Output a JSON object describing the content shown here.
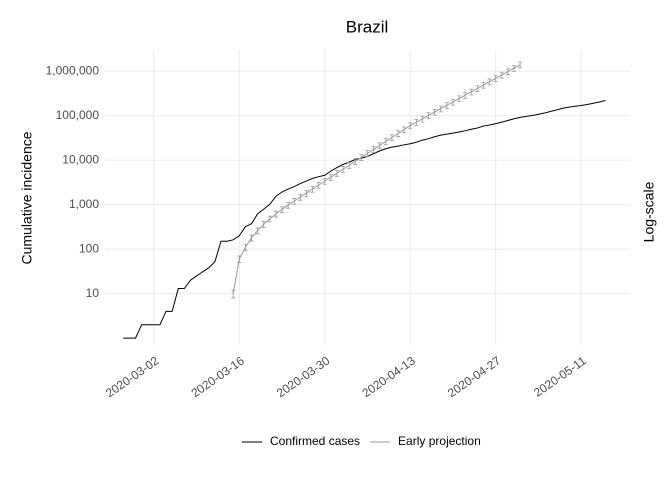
{
  "chart_data": {
    "type": "line",
    "title": "Brazil",
    "y_label": "Cumulative incidence",
    "right_label": "Log-scale",
    "log_y": true,
    "grid": true,
    "legend_position": "bottom",
    "xlim": [
      "2020-02-23",
      "2020-05-19"
    ],
    "xticks": [
      "2020-03-02",
      "2020-03-16",
      "2020-03-30",
      "2020-04-13",
      "2020-04-27",
      "2020-05-11"
    ],
    "ylim": [
      0.7,
      3000000
    ],
    "yticks": [
      10,
      100,
      {
        "value": 1000,
        "label": "1,000"
      },
      {
        "value": 10000,
        "label": "10,000"
      },
      {
        "value": 100000,
        "label": "100,000"
      },
      {
        "value": 1000000,
        "label": "1,000,000"
      }
    ],
    "series": [
      {
        "name": "Confirmed cases",
        "color": "#000000",
        "x": [
          "2020-02-26",
          "2020-02-27",
          "2020-02-28",
          "2020-02-29",
          "2020-03-01",
          "2020-03-02",
          "2020-03-03",
          "2020-03-04",
          "2020-03-05",
          "2020-03-06",
          "2020-03-07",
          "2020-03-08",
          "2020-03-09",
          "2020-03-10",
          "2020-03-11",
          "2020-03-12",
          "2020-03-13",
          "2020-03-14",
          "2020-03-15",
          "2020-03-16",
          "2020-03-17",
          "2020-03-18",
          "2020-03-19",
          "2020-03-20",
          "2020-03-21",
          "2020-03-22",
          "2020-03-23",
          "2020-03-24",
          "2020-03-25",
          "2020-03-26",
          "2020-03-27",
          "2020-03-28",
          "2020-03-29",
          "2020-03-30",
          "2020-03-31",
          "2020-04-01",
          "2020-04-02",
          "2020-04-03",
          "2020-04-04",
          "2020-04-05",
          "2020-04-06",
          "2020-04-07",
          "2020-04-08",
          "2020-04-09",
          "2020-04-10",
          "2020-04-11",
          "2020-04-12",
          "2020-04-13",
          "2020-04-14",
          "2020-04-15",
          "2020-04-16",
          "2020-04-17",
          "2020-04-18",
          "2020-04-19",
          "2020-04-20",
          "2020-04-21",
          "2020-04-22",
          "2020-04-23",
          "2020-04-24",
          "2020-04-25",
          "2020-04-26",
          "2020-04-27",
          "2020-04-28",
          "2020-04-29",
          "2020-04-30",
          "2020-05-01",
          "2020-05-02",
          "2020-05-03",
          "2020-05-04",
          "2020-05-05",
          "2020-05-06",
          "2020-05-07",
          "2020-05-08",
          "2020-05-09",
          "2020-05-10",
          "2020-05-11",
          "2020-05-12",
          "2020-05-13",
          "2020-05-14",
          "2020-05-15"
        ],
        "values": [
          1,
          1,
          1,
          2,
          2,
          2,
          2,
          4,
          4,
          13,
          13,
          20,
          25,
          31,
          38,
          52,
          151,
          151,
          162,
          200,
          321,
          372,
          621,
          793,
          1021,
          1546,
          1924,
          2247,
          2554,
          2985,
          3417,
          3904,
          4256,
          4579,
          5717,
          6836,
          8044,
          9056,
          10360,
          11130,
          12161,
          14034,
          16170,
          18092,
          19638,
          20727,
          22169,
          23430,
          25262,
          28320,
          30425,
          33682,
          36599,
          38654,
          40581,
          43079,
          45757,
          49492,
          52995,
          58509,
          61888,
          66501,
          71886,
          78162,
          85380,
          91589,
          96559,
          101147,
          107780,
          114715,
          125218,
          135106,
          146894,
          156061,
          162699,
          169594,
          178214,
          190137,
          203165,
          220291
        ]
      },
      {
        "name": "Early projection",
        "color": "#999999",
        "x": [
          "2020-03-15",
          "2020-03-16",
          "2020-03-17",
          "2020-03-18",
          "2020-03-19",
          "2020-03-20",
          "2020-03-21",
          "2020-03-22",
          "2020-03-23",
          "2020-03-24",
          "2020-03-25",
          "2020-03-26",
          "2020-03-27",
          "2020-03-28",
          "2020-03-29",
          "2020-03-30",
          "2020-03-31",
          "2020-04-01",
          "2020-04-02",
          "2020-04-03",
          "2020-04-04",
          "2020-04-05",
          "2020-04-06",
          "2020-04-07",
          "2020-04-08",
          "2020-04-09",
          "2020-04-10",
          "2020-04-11",
          "2020-04-12",
          "2020-04-13",
          "2020-04-14",
          "2020-04-15",
          "2020-04-16",
          "2020-04-17",
          "2020-04-18",
          "2020-04-19",
          "2020-04-20",
          "2020-04-21",
          "2020-04-22",
          "2020-04-23",
          "2020-04-24",
          "2020-04-25",
          "2020-04-26",
          "2020-04-27",
          "2020-04-28",
          "2020-04-29",
          "2020-04-30",
          "2020-05-01"
        ],
        "values": [
          10,
          60,
          110,
          180,
          260,
          360,
          480,
          620,
          780,
          980,
          1200,
          1480,
          1820,
          2240,
          2750,
          3380,
          4150,
          5100,
          6260,
          7690,
          9440,
          11600,
          14240,
          17480,
          21470,
          26360,
          32370,
          39750,
          48810,
          59940,
          71400,
          85000,
          101300,
          120600,
          143600,
          171100,
          203700,
          242700,
          289000,
          344200,
          410000,
          488300,
          581600,
          692700,
          825000,
          982600,
          1170000,
          1394000
        ],
        "errors": [
          2,
          10,
          18,
          28,
          40,
          55,
          72,
          93,
          117,
          147,
          180,
          222,
          273,
          336,
          412,
          507,
          622,
          765,
          939,
          1150,
          1420,
          1740,
          2140,
          2620,
          3220,
          3950,
          4860,
          5960,
          7320,
          8990,
          10700,
          12800,
          15200,
          18100,
          21500,
          25700,
          30600,
          36400,
          43400,
          51600,
          61500,
          73200,
          87200,
          104000,
          124000,
          147000,
          176000,
          209000
        ]
      }
    ]
  }
}
